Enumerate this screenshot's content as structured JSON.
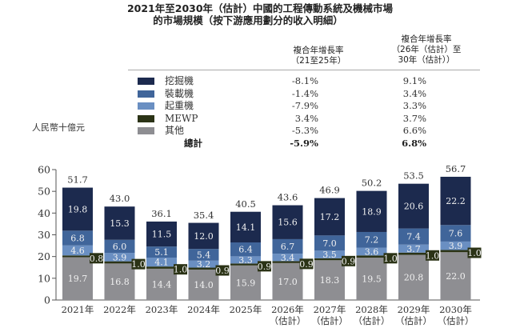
{
  "title": {
    "line1": "2021年至2030年（估計）中國的工程傳動系統及機械市場",
    "line2": "的市場規模（按下游應用劃分的收入明細）"
  },
  "table": {
    "col1_header": [
      "複合年增長率",
      "（21至25年）"
    ],
    "col2_header": [
      "複合年增長率",
      "（26年（估計）至",
      "30年（估計））"
    ],
    "rows": [
      {
        "label": "挖掘機",
        "color": "#1c2a4e",
        "cagr1": "-8.1%",
        "cagr2": "9.1%"
      },
      {
        "label": "裝載機",
        "color": "#40659a",
        "cagr1": "-1.4%",
        "cagr2": "3.4%"
      },
      {
        "label": "起重機",
        "color": "#6a8fc2",
        "cagr1": "-7.9%",
        "cagr2": "3.3%"
      },
      {
        "label": "MEWP",
        "color": "#2b3316",
        "cagr1": "3.4%",
        "cagr2": "3.7%"
      },
      {
        "label": "其他",
        "color": "#8e8e92",
        "cagr1": "-5.3%",
        "cagr2": "6.6%"
      }
    ],
    "total": {
      "label": "總計",
      "cagr1": "-5.9%",
      "cagr2": "6.8%"
    }
  },
  "chart_data": {
    "type": "bar",
    "stacked": true,
    "title": "2021年至2030年（估計）中國的工程傳動系統及機械市場的市場規模（按下游應用劃分的收入明細）",
    "ylabel": "人民幣十億元",
    "xlabel": "",
    "ylim": [
      0,
      60
    ],
    "yticks": [
      0,
      10,
      20,
      30,
      40,
      50,
      60
    ],
    "grid": false,
    "legend": "top",
    "categories": [
      [
        "2021年"
      ],
      [
        "2022年"
      ],
      [
        "2023年"
      ],
      [
        "2024年"
      ],
      [
        "2025年"
      ],
      [
        "2026年",
        "（估計）"
      ],
      [
        "2027年",
        "（估計）"
      ],
      [
        "2028年",
        "（估計）"
      ],
      [
        "2029年",
        "（估計）"
      ],
      [
        "2030年",
        "（估計）"
      ]
    ],
    "series": [
      {
        "name": "其他",
        "color": "#8e8e92",
        "label_color": "#f0f0f0",
        "values": [
          19.7,
          16.8,
          14.4,
          14.0,
          15.9,
          17.0,
          18.3,
          19.5,
          20.8,
          22.0
        ]
      },
      {
        "name": "MEWP",
        "color": "#2b3316",
        "label_color": "#f0f0f0",
        "values": [
          0.8,
          1.0,
          1.0,
          0.9,
          0.9,
          0.9,
          0.9,
          1.0,
          1.0,
          1.0
        ]
      },
      {
        "name": "起重機",
        "color": "#6a8fc2",
        "label_color": "#f0f0f0",
        "values": [
          4.6,
          3.9,
          4.1,
          3.2,
          3.3,
          3.4,
          3.5,
          3.6,
          3.7,
          3.9
        ]
      },
      {
        "name": "裝載機",
        "color": "#40659a",
        "label_color": "#f0f0f0",
        "values": [
          6.8,
          6.0,
          5.1,
          5.4,
          6.4,
          6.7,
          7.0,
          7.2,
          7.4,
          7.6
        ]
      },
      {
        "name": "挖掘機",
        "color": "#1c2a4e",
        "label_color": "#f0f0f0",
        "values": [
          19.8,
          15.3,
          11.5,
          12.0,
          14.1,
          15.6,
          17.2,
          18.9,
          20.6,
          22.2
        ]
      }
    ],
    "totals": [
      51.7,
      43.0,
      36.1,
      35.4,
      40.5,
      43.6,
      46.9,
      50.2,
      53.5,
      56.7
    ],
    "total_labels": [
      "51.7",
      "43.0",
      "36.1",
      "35.4",
      "40.5",
      "43.6",
      "46.9",
      "50.2",
      "53.5",
      "56.7"
    ],
    "value_labels": {
      "其他": [
        "19.7",
        "16.8",
        "14.4",
        "14.0",
        "15.9",
        "17.0",
        "18.3",
        "19.5",
        "20.8",
        "22.0"
      ],
      "MEWP": [
        "0.8",
        "1.0",
        "1.0",
        "0.9",
        "0.9",
        "0.9",
        "0.9",
        "1.0",
        "1.0",
        "1.0"
      ],
      "起重機": [
        "4.6",
        "3.9",
        "4.1",
        "3.2",
        "3.3",
        "3.4",
        "3.5",
        "3.6",
        "3.7",
        "3.9"
      ],
      "裝載機": [
        "6.8",
        "6.0",
        "5.1",
        "5.4",
        "6.4",
        "6.7",
        "7.0",
        "7.2",
        "7.4",
        "7.6"
      ],
      "挖掘機": [
        "19.8",
        "15.3",
        "11.5",
        "12.0",
        "14.1",
        "15.6",
        "17.2",
        "18.9",
        "20.6",
        "22.2"
      ]
    }
  }
}
